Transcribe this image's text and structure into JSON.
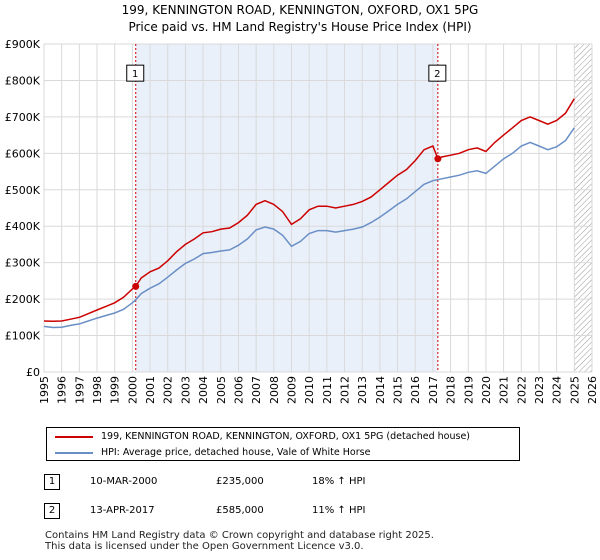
{
  "title": "199, KENNINGTON ROAD, KENNINGTON, OXFORD, OX1 5PG",
  "subtitle": "Price paid vs. HM Land Registry's House Price Index (HPI)",
  "colors": {
    "property": "#cc0000",
    "hpi": "#6a8fc6",
    "shade": "#eaf0fa",
    "grid": "#d9d9d9"
  },
  "chart_data": {
    "type": "line",
    "ylim": [
      0,
      900000
    ],
    "xlim": [
      1995,
      2026
    ],
    "yticks": [
      {
        "value": 0,
        "label": "£0"
      },
      {
        "value": 100000,
        "label": "£100K"
      },
      {
        "value": 200000,
        "label": "£200K"
      },
      {
        "value": 300000,
        "label": "£300K"
      },
      {
        "value": 400000,
        "label": "£400K"
      },
      {
        "value": 500000,
        "label": "£500K"
      },
      {
        "value": 600000,
        "label": "£600K"
      },
      {
        "value": 700000,
        "label": "£700K"
      },
      {
        "value": 800000,
        "label": "£800K"
      },
      {
        "value": 900000,
        "label": "£900K"
      }
    ],
    "xticks": [
      "1995",
      "1996",
      "1997",
      "1998",
      "1999",
      "2000",
      "2001",
      "2002",
      "2003",
      "2004",
      "2005",
      "2006",
      "2007",
      "2008",
      "2009",
      "2010",
      "2011",
      "2012",
      "2013",
      "2014",
      "2015",
      "2016",
      "2017",
      "2018",
      "2019",
      "2020",
      "2021",
      "2022",
      "2023",
      "2024",
      "2025",
      "2026"
    ],
    "shaded_range": [
      2000.19,
      2017.28
    ],
    "hatch_from": 2025.0,
    "markers": [
      {
        "label": "1",
        "x": 2000.19,
        "y": 235000
      },
      {
        "label": "2",
        "x": 2017.28,
        "y": 585000
      }
    ],
    "series": [
      {
        "name": "199, KENNINGTON ROAD, KENNINGTON, OXFORD, OX1 5PG (detached house)",
        "color": "#cc0000",
        "points": [
          [
            1995.0,
            140000
          ],
          [
            1995.5,
            139000
          ],
          [
            1996.0,
            140000
          ],
          [
            1996.5,
            145000
          ],
          [
            1997.0,
            150000
          ],
          [
            1997.5,
            160000
          ],
          [
            1998.0,
            170000
          ],
          [
            1998.5,
            180000
          ],
          [
            1999.0,
            190000
          ],
          [
            1999.5,
            205000
          ],
          [
            2000.0,
            228000
          ],
          [
            2000.19,
            235000
          ],
          [
            2000.5,
            258000
          ],
          [
            2001.0,
            275000
          ],
          [
            2001.5,
            285000
          ],
          [
            2002.0,
            305000
          ],
          [
            2002.5,
            330000
          ],
          [
            2003.0,
            350000
          ],
          [
            2003.5,
            365000
          ],
          [
            2004.0,
            382000
          ],
          [
            2004.5,
            385000
          ],
          [
            2005.0,
            392000
          ],
          [
            2005.5,
            395000
          ],
          [
            2006.0,
            410000
          ],
          [
            2006.5,
            430000
          ],
          [
            2007.0,
            460000
          ],
          [
            2007.5,
            470000
          ],
          [
            2008.0,
            460000
          ],
          [
            2008.5,
            440000
          ],
          [
            2009.0,
            405000
          ],
          [
            2009.5,
            420000
          ],
          [
            2010.0,
            445000
          ],
          [
            2010.5,
            455000
          ],
          [
            2011.0,
            455000
          ],
          [
            2011.5,
            450000
          ],
          [
            2012.0,
            455000
          ],
          [
            2012.5,
            460000
          ],
          [
            2013.0,
            468000
          ],
          [
            2013.5,
            480000
          ],
          [
            2014.0,
            500000
          ],
          [
            2014.5,
            520000
          ],
          [
            2015.0,
            540000
          ],
          [
            2015.5,
            555000
          ],
          [
            2016.0,
            580000
          ],
          [
            2016.5,
            610000
          ],
          [
            2017.0,
            620000
          ],
          [
            2017.28,
            585000
          ],
          [
            2017.5,
            590000
          ],
          [
            2018.0,
            595000
          ],
          [
            2018.5,
            600000
          ],
          [
            2019.0,
            610000
          ],
          [
            2019.5,
            615000
          ],
          [
            2020.0,
            605000
          ],
          [
            2020.5,
            630000
          ],
          [
            2021.0,
            650000
          ],
          [
            2021.5,
            670000
          ],
          [
            2022.0,
            690000
          ],
          [
            2022.5,
            700000
          ],
          [
            2023.0,
            690000
          ],
          [
            2023.5,
            680000
          ],
          [
            2024.0,
            690000
          ],
          [
            2024.5,
            710000
          ],
          [
            2025.0,
            750000
          ]
        ]
      },
      {
        "name": "HPI: Average price, detached house, Vale of White Horse",
        "color": "#6a8fc6",
        "points": [
          [
            1995.0,
            125000
          ],
          [
            1995.5,
            122000
          ],
          [
            1996.0,
            123000
          ],
          [
            1996.5,
            128000
          ],
          [
            1997.0,
            132000
          ],
          [
            1997.5,
            140000
          ],
          [
            1998.0,
            148000
          ],
          [
            1998.5,
            155000
          ],
          [
            1999.0,
            162000
          ],
          [
            1999.5,
            172000
          ],
          [
            2000.0,
            190000
          ],
          [
            2000.19,
            198000
          ],
          [
            2000.5,
            215000
          ],
          [
            2001.0,
            230000
          ],
          [
            2001.5,
            242000
          ],
          [
            2002.0,
            260000
          ],
          [
            2002.5,
            280000
          ],
          [
            2003.0,
            298000
          ],
          [
            2003.5,
            310000
          ],
          [
            2004.0,
            325000
          ],
          [
            2004.5,
            328000
          ],
          [
            2005.0,
            332000
          ],
          [
            2005.5,
            335000
          ],
          [
            2006.0,
            348000
          ],
          [
            2006.5,
            365000
          ],
          [
            2007.0,
            390000
          ],
          [
            2007.5,
            398000
          ],
          [
            2008.0,
            392000
          ],
          [
            2008.5,
            375000
          ],
          [
            2009.0,
            345000
          ],
          [
            2009.5,
            358000
          ],
          [
            2010.0,
            380000
          ],
          [
            2010.5,
            388000
          ],
          [
            2011.0,
            388000
          ],
          [
            2011.5,
            384000
          ],
          [
            2012.0,
            388000
          ],
          [
            2012.5,
            392000
          ],
          [
            2013.0,
            398000
          ],
          [
            2013.5,
            410000
          ],
          [
            2014.0,
            425000
          ],
          [
            2014.5,
            442000
          ],
          [
            2015.0,
            460000
          ],
          [
            2015.5,
            475000
          ],
          [
            2016.0,
            495000
          ],
          [
            2016.5,
            515000
          ],
          [
            2017.0,
            525000
          ],
          [
            2017.28,
            528000
          ],
          [
            2017.5,
            530000
          ],
          [
            2018.0,
            535000
          ],
          [
            2018.5,
            540000
          ],
          [
            2019.0,
            548000
          ],
          [
            2019.5,
            552000
          ],
          [
            2020.0,
            545000
          ],
          [
            2020.5,
            565000
          ],
          [
            2021.0,
            585000
          ],
          [
            2021.5,
            600000
          ],
          [
            2022.0,
            620000
          ],
          [
            2022.5,
            630000
          ],
          [
            2023.0,
            620000
          ],
          [
            2023.5,
            610000
          ],
          [
            2024.0,
            618000
          ],
          [
            2024.5,
            635000
          ],
          [
            2025.0,
            670000
          ]
        ]
      }
    ]
  },
  "legend": {
    "property_label": "199, KENNINGTON ROAD, KENNINGTON, OXFORD, OX1 5PG (detached house)",
    "hpi_label": "HPI: Average price, detached house, Vale of White Horse"
  },
  "transactions": [
    {
      "num": "1",
      "date": "10-MAR-2000",
      "price": "£235,000",
      "hpi": "18% ↑ HPI"
    },
    {
      "num": "2",
      "date": "13-APR-2017",
      "price": "£585,000",
      "hpi": "11% ↑ HPI"
    }
  ],
  "footer": {
    "line1": "Contains HM Land Registry data © Crown copyright and database right 2025.",
    "line2": "This data is licensed under the Open Government Licence v3.0."
  }
}
